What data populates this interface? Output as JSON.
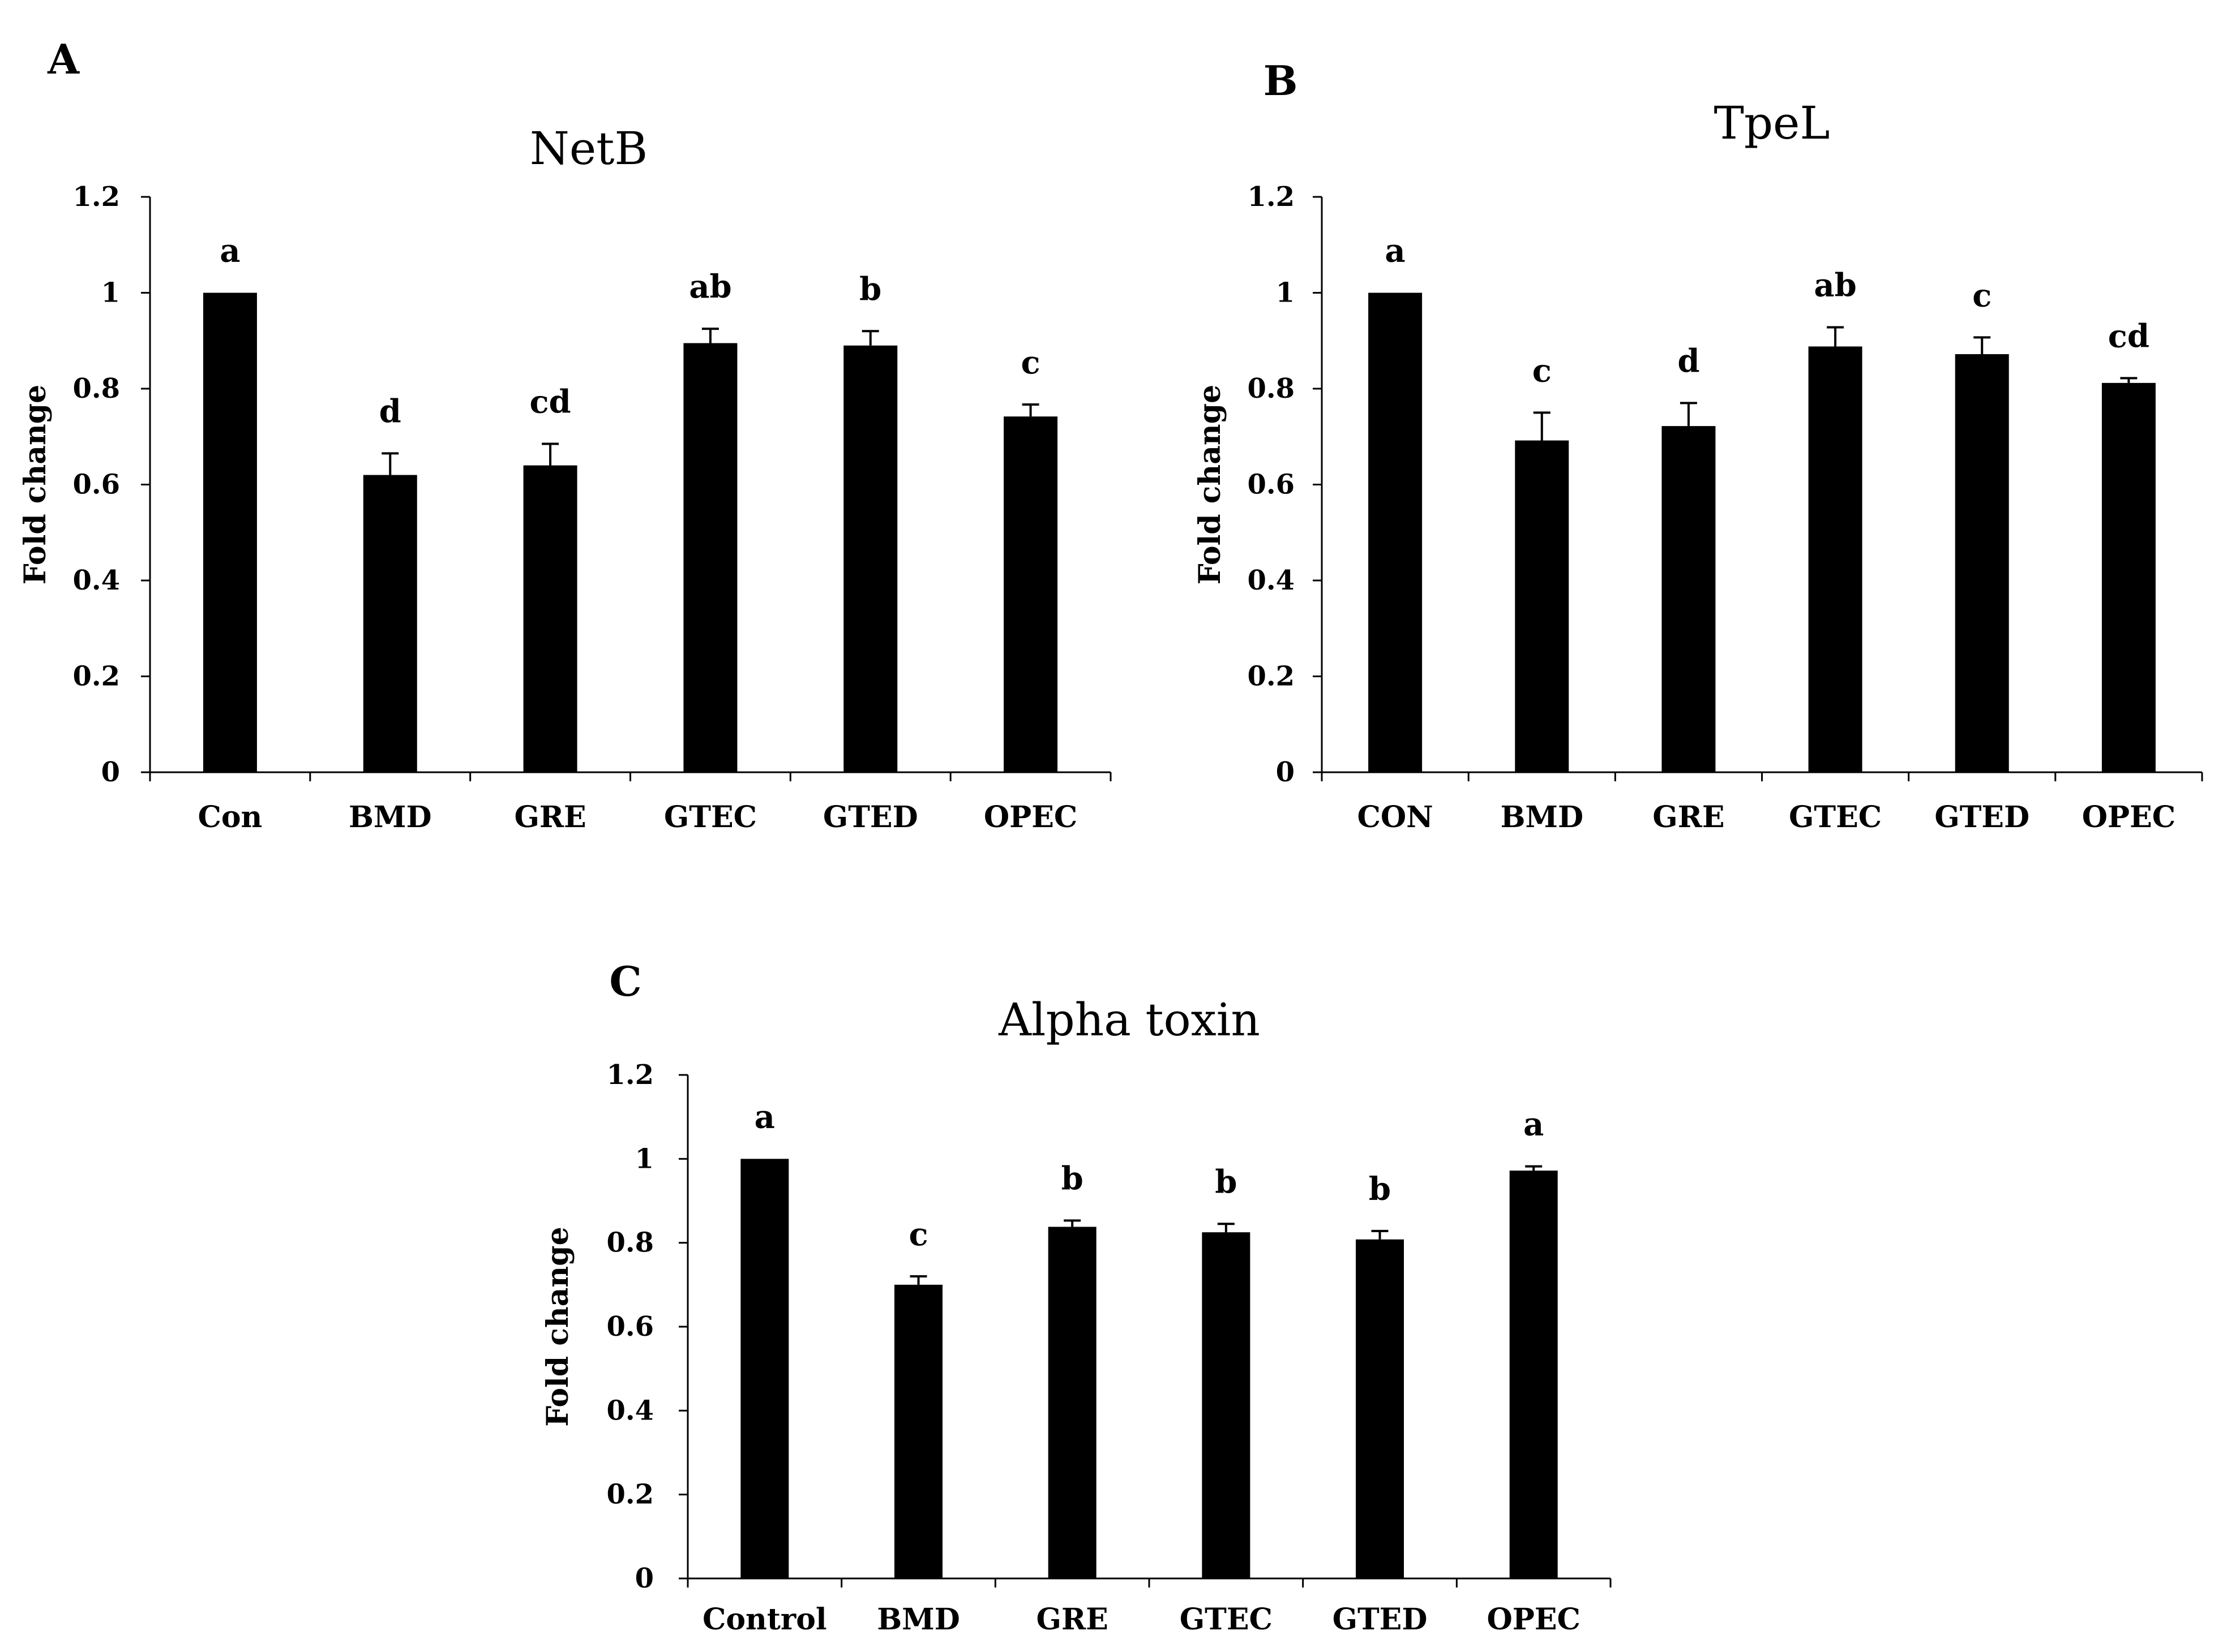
{
  "chart_data": [
    {
      "panel": "A",
      "type": "bar",
      "title": "NetB",
      "ylabel": "Fold change",
      "xlabel": "",
      "ylim": [
        0,
        1.2
      ],
      "yticks": [
        "0",
        "0.2",
        "0.4",
        "0.6",
        "0.8",
        "1",
        "1.2"
      ],
      "categories": [
        "Con",
        "BMD",
        "GRE",
        "GTEC",
        "GTED",
        "OPEC"
      ],
      "values": [
        1.0,
        0.62,
        0.64,
        0.895,
        0.89,
        0.742
      ],
      "errors": [
        0.0,
        0.045,
        0.045,
        0.03,
        0.03,
        0.025
      ],
      "significance": [
        "a",
        "d",
        "cd",
        "ab",
        "b",
        "c"
      ],
      "bar_color": "#000000"
    },
    {
      "panel": "B",
      "type": "bar",
      "title": "TpeL",
      "ylabel": "Fold change",
      "xlabel": "",
      "ylim": [
        0,
        1.2
      ],
      "yticks": [
        "0",
        "0.2",
        "0.4",
        "0.6",
        "0.8",
        "1",
        "1.2"
      ],
      "categories": [
        "CON",
        "BMD",
        "GRE",
        "GTEC",
        "GTED",
        "OPEC"
      ],
      "values": [
        1.0,
        0.692,
        0.722,
        0.888,
        0.872,
        0.812
      ],
      "errors": [
        0.0,
        0.058,
        0.048,
        0.04,
        0.035,
        0.01
      ],
      "significance": [
        "a",
        "c",
        "d",
        "ab",
        "c",
        "cd"
      ],
      "bar_color": "#000000"
    },
    {
      "panel": "C",
      "type": "bar",
      "title": "Alpha toxin",
      "ylabel": "Fold change",
      "xlabel": "",
      "ylim": [
        0,
        1.2
      ],
      "yticks": [
        "0",
        "0.2",
        "0.4",
        "0.6",
        "0.8",
        "1",
        "1.2"
      ],
      "categories": [
        "Control",
        "BMD",
        "GRE",
        "GTEC",
        "GTED",
        "OPEC"
      ],
      "values": [
        1.0,
        0.7,
        0.838,
        0.825,
        0.808,
        0.972
      ],
      "errors": [
        0.0,
        0.02,
        0.015,
        0.02,
        0.02,
        0.01
      ],
      "significance": [
        "a",
        "c",
        "b",
        "b",
        "b",
        "a"
      ],
      "bar_color": "#000000"
    }
  ]
}
